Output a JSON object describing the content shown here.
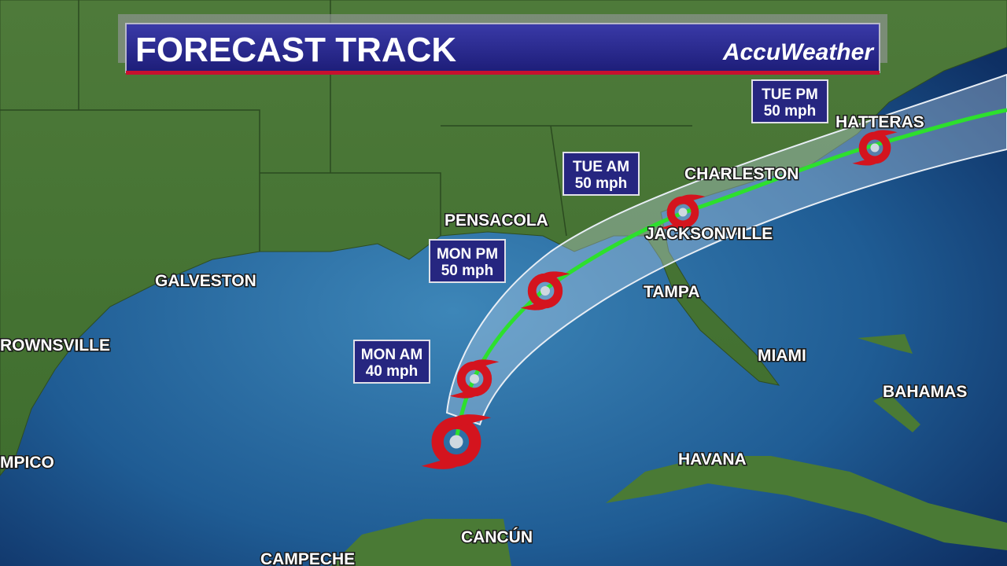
{
  "header": {
    "title": "FORECAST TRACK",
    "brand": "AccuWeather"
  },
  "cities": [
    "HATTERAS",
    "CHARLESTON",
    "JACKSONVILLE",
    "PENSACOLA",
    "TAMPA",
    "GALVESTON",
    "ROWNSVILLE",
    "MIAMI",
    "BAHAMAS",
    "MPICO",
    "HAVANA",
    "CANCÚN",
    "CAMPECHE"
  ],
  "forecast_points": [
    {
      "time": "TUE PM",
      "speed": "50 mph"
    },
    {
      "time": "TUE AM",
      "speed": "50 mph"
    },
    {
      "time": "MON PM",
      "speed": "50 mph"
    },
    {
      "time": "MON AM",
      "speed": "40 mph"
    }
  ]
}
